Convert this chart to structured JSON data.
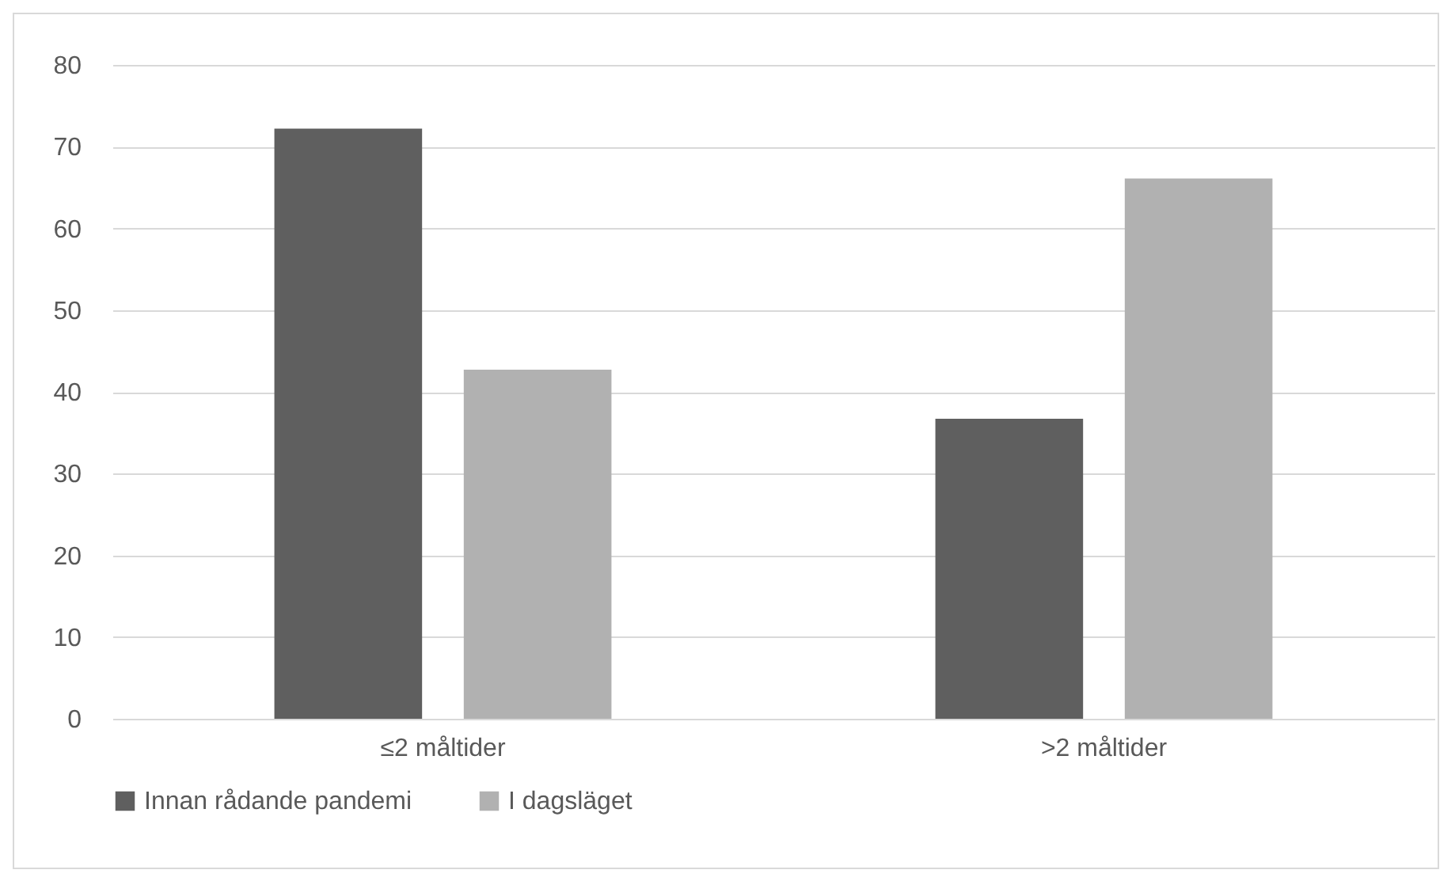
{
  "chart_data": {
    "type": "bar",
    "categories": [
      "≤2 måltider",
      ">2 måltider"
    ],
    "series": [
      {
        "name": "Innan rådande pandemi",
        "color": "#5f5f5f",
        "values": [
          72.2,
          36.7
        ]
      },
      {
        "name": "I dagsläget",
        "color": "#b1b1b1",
        "values": [
          42.7,
          66.1
        ]
      }
    ],
    "ylim": [
      0,
      80
    ],
    "yticks": [
      0,
      10,
      20,
      30,
      40,
      50,
      60,
      70,
      80
    ],
    "grid": "y",
    "legend": "bottom"
  }
}
